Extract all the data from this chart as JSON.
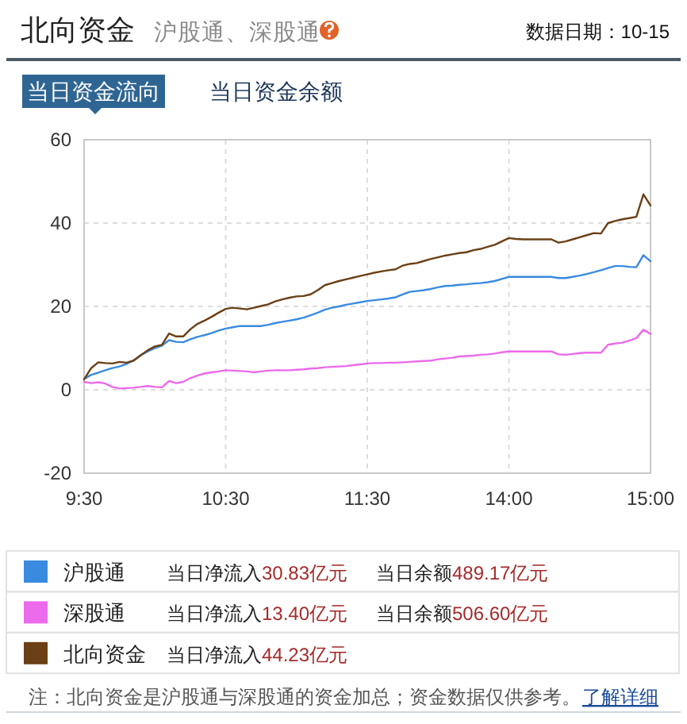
{
  "chart_data": {
    "type": "line",
    "title": "北向资金",
    "subtitle": "沪股通、深股通",
    "annotations": [
      "数据日期：10-15",
      "当日资金流向",
      "当日资金余额",
      "当日净流入",
      "30.83亿元",
      "当日余额",
      "489.17亿元",
      "当日净流入",
      "13.40亿元",
      "当日余额",
      "506.60亿元",
      "当日净流入",
      "44.23亿元",
      "注：北向资金是沪股通与深股通的资金加总；资金数据仅供参考。",
      "了解详细"
    ],
    "categories": [
      "9:30",
      null,
      null,
      null,
      null,
      null,
      null,
      null,
      null,
      null,
      null,
      null,
      null,
      null,
      null,
      null,
      null,
      null,
      null,
      null,
      "10:30",
      null,
      null,
      null,
      null,
      null,
      null,
      null,
      null,
      null,
      null,
      null,
      null,
      null,
      null,
      null,
      null,
      null,
      null,
      null,
      "11:30",
      null,
      null,
      null,
      null,
      null,
      null,
      null,
      null,
      null,
      null,
      null,
      null,
      null,
      null,
      null,
      null,
      null,
      null,
      null,
      "14:00",
      null,
      null,
      null,
      null,
      null,
      null,
      null,
      null,
      null,
      null,
      null,
      null,
      null,
      null,
      null,
      null,
      null,
      null,
      null,
      "15:00"
    ],
    "ylim": [
      -20,
      60
    ],
    "yticks": [
      -20,
      0,
      20,
      40,
      60
    ],
    "grid": true,
    "legend": "bottom",
    "series": [
      {
        "name": "沪股通",
        "color": "#3a8be0",
        "values": [
          2.6,
          3.6,
          4.1,
          4.7,
          5.2,
          5.6,
          6.2,
          7.1,
          8.3,
          9.2,
          10,
          10.6,
          11.9,
          11.5,
          11.4,
          12.1,
          12.7,
          13.1,
          13.6,
          14.2,
          14.7,
          15,
          15.3,
          15.3,
          15.3,
          15.3,
          15.6,
          16,
          16.3,
          16.6,
          16.9,
          17.3,
          17.9,
          18.5,
          19.2,
          19.7,
          20,
          20.4,
          20.7,
          21,
          21.3,
          21.5,
          21.7,
          21.9,
          22.2,
          22.9,
          23.5,
          23.7,
          23.9,
          24.2,
          24.6,
          24.9,
          25,
          25.2,
          25.3,
          25.5,
          25.6,
          25.8,
          26.1,
          26.6,
          27.1,
          27.1,
          27.1,
          27.1,
          27.1,
          27.1,
          27.1,
          26.8,
          26.8,
          27.1,
          27.4,
          27.8,
          28.2,
          28.7,
          29.2,
          29.7,
          29.7,
          29.5,
          29.4,
          32.3,
          30.83
        ]
      },
      {
        "name": "深股通",
        "color": "#ec6aec",
        "values": [
          1.9,
          1.6,
          1.8,
          1.5,
          0.7,
          0.3,
          0.4,
          0.5,
          0.7,
          0.9,
          0.7,
          0.6,
          2.1,
          1.6,
          1.9,
          2.8,
          3.4,
          3.9,
          4.2,
          4.4,
          4.7,
          4.6,
          4.5,
          4.4,
          4.2,
          4.4,
          4.6,
          4.7,
          4.7,
          4.7,
          4.8,
          4.9,
          5.1,
          5.2,
          5.4,
          5.5,
          5.6,
          5.7,
          5.9,
          6.1,
          6.3,
          6.4,
          6.4,
          6.5,
          6.5,
          6.6,
          6.7,
          6.8,
          6.9,
          7,
          7.3,
          7.5,
          7.7,
          8,
          8.1,
          8.2,
          8.4,
          8.5,
          8.7,
          9,
          9.2,
          9.2,
          9.2,
          9.2,
          9.2,
          9.2,
          9.2,
          8.5,
          8.4,
          8.6,
          8.8,
          8.9,
          8.9,
          8.9,
          10.8,
          11.1,
          11.3,
          11.8,
          12.4,
          14.4,
          13.4
        ]
      },
      {
        "name": "北向资金",
        "color": "#6b4016",
        "values": [
          2.5,
          5.2,
          6.6,
          6.4,
          6.3,
          6.7,
          6.5,
          7,
          8.3,
          9.5,
          10.4,
          10.8,
          13.5,
          12.8,
          12.8,
          14.5,
          15.8,
          16.6,
          17.5,
          18.5,
          19.4,
          19.7,
          19.5,
          19.3,
          19.7,
          20.1,
          20.5,
          21.2,
          21.7,
          22.1,
          22.4,
          22.5,
          22.9,
          23.9,
          25.1,
          25.6,
          26.1,
          26.5,
          26.9,
          27.3,
          27.7,
          28.1,
          28.4,
          28.7,
          28.9,
          29.8,
          30.2,
          30.4,
          30.9,
          31.4,
          31.8,
          32.2,
          32.5,
          32.8,
          33,
          33.5,
          33.8,
          34.3,
          34.8,
          35.6,
          36.4,
          36.2,
          36.1,
          36.1,
          36.1,
          36.1,
          36.1,
          35.3,
          35.6,
          36.1,
          36.6,
          37.1,
          37.6,
          37.5,
          40,
          40.5,
          40.9,
          41.2,
          41.5,
          46.9,
          44.23
        ]
      }
    ]
  }
}
